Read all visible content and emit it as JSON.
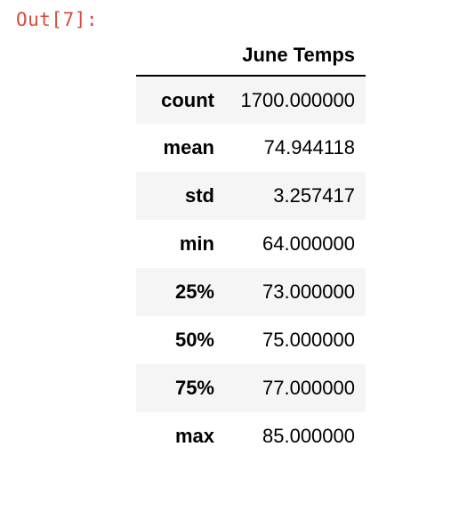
{
  "cell": {
    "prompt": "Out[7]:"
  },
  "table": {
    "column_header": "June Temps",
    "rows": [
      {
        "label": "count",
        "value": "1700.000000"
      },
      {
        "label": "mean",
        "value": "74.944118"
      },
      {
        "label": "std",
        "value": "3.257417"
      },
      {
        "label": "min",
        "value": "64.000000"
      },
      {
        "label": "25%",
        "value": "73.000000"
      },
      {
        "label": "50%",
        "value": "75.000000"
      },
      {
        "label": "75%",
        "value": "77.000000"
      },
      {
        "label": "max",
        "value": "85.000000"
      }
    ]
  },
  "colors": {
    "prompt": "#d84b3c",
    "striped_row": "#f5f5f5",
    "header_rule": "#000000"
  }
}
